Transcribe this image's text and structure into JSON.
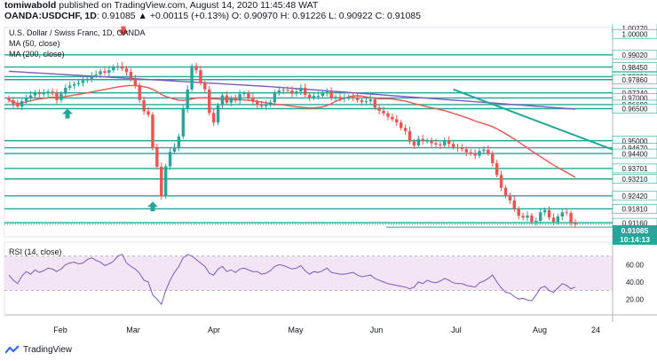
{
  "header": {
    "author": "tomiwabold",
    "published_text": "published on TradingView.com, August 14, 2020 11:45:48 WAT",
    "symbol": "OANDA:USDCHF, 1D",
    "quote": "0.91085 ▲ +0.00115 (+0.13%) O: 0.90970 H: 0.91226 L: 0.90922 C: 0.91085"
  },
  "footer": {
    "brand": "TradingView"
  },
  "chart_data": [
    {
      "type": "candlestick",
      "title": "U.S. Dollar / Swiss Franc, 1D, OANDA",
      "indicators": [
        "MA (50, close)",
        "MA (200, close)"
      ],
      "x_labels": [
        "Feb",
        "Mar",
        "Apr",
        "May",
        "Jun",
        "Jul",
        "Aug",
        "24"
      ],
      "y_labels": [
        "1.00270",
        "1.00000",
        "0.99020",
        "0.98450",
        "0.98000",
        "0.97860",
        "0.97240",
        "0.97000",
        "0.96690",
        "0.96500",
        "0.95000",
        "0.94670",
        "0.94400",
        "0.93701",
        "0.93210",
        "0.92420",
        "0.91810",
        "0.91160",
        "0.91085",
        "10:14:13"
      ],
      "last_price": 0.91085,
      "countdown": "10:14:13",
      "ylim": [
        0.905,
        1.003
      ],
      "horizontal_levels": [
        0.9902,
        0.9845,
        0.98,
        0.9786,
        0.9724,
        0.97,
        0.9669,
        0.965,
        0.95,
        0.9467,
        0.944,
        0.93701,
        0.9321,
        0.9242,
        0.9181,
        0.9116
      ],
      "close_series": [
        0.969,
        0.9672,
        0.966,
        0.9685,
        0.97,
        0.9712,
        0.9725,
        0.9718,
        0.9722,
        0.973,
        0.9721,
        0.969,
        0.972,
        0.9748,
        0.9758,
        0.9765,
        0.977,
        0.9782,
        0.979,
        0.9805,
        0.981,
        0.9825,
        0.9818,
        0.983,
        0.9845,
        0.9848,
        0.9838,
        0.9822,
        0.9788,
        0.976,
        0.969,
        0.9638,
        0.9622,
        0.947,
        0.9378,
        0.924,
        0.938,
        0.9448,
        0.9468,
        0.952,
        0.9648,
        0.974,
        0.985,
        0.983,
        0.977,
        0.974,
        0.963,
        0.9585,
        0.9665,
        0.9712,
        0.9678,
        0.97,
        0.9688,
        0.9718,
        0.9722,
        0.9702,
        0.9682,
        0.967,
        0.9662,
        0.967,
        0.968,
        0.9722,
        0.9735,
        0.9738,
        0.9735,
        0.972,
        0.973,
        0.9748,
        0.9715,
        0.9702,
        0.971,
        0.971,
        0.9724,
        0.973,
        0.97,
        0.9705,
        0.9696,
        0.97,
        0.9705,
        0.9702,
        0.969,
        0.9682,
        0.9685,
        0.9693,
        0.9655,
        0.964,
        0.9628,
        0.9612,
        0.96,
        0.9585,
        0.956,
        0.9545,
        0.9496,
        0.9478,
        0.9508,
        0.9498,
        0.95,
        0.9488,
        0.9482,
        0.9478,
        0.95,
        0.9485,
        0.947,
        0.9465,
        0.946,
        0.9446,
        0.944,
        0.943,
        0.9452,
        0.9458,
        0.944,
        0.9395,
        0.934,
        0.928,
        0.9242,
        0.922,
        0.918,
        0.9148,
        0.914,
        0.915,
        0.912,
        0.9125,
        0.9165,
        0.9175,
        0.914,
        0.912,
        0.9145,
        0.9165,
        0.9162,
        0.9118,
        0.9108
      ],
      "rsi": {
        "label": "RSI (14, close)",
        "y_labels": [
          "60.00",
          "40.00",
          "20.00"
        ],
        "ylim": [
          10,
          80
        ],
        "band": [
          30,
          70
        ],
        "values": [
          48,
          42,
          38,
          47,
          52,
          49,
          54,
          51,
          53,
          56,
          55,
          52,
          55,
          60,
          62,
          63,
          61,
          62,
          66,
          68,
          65,
          63,
          59,
          61,
          64,
          70,
          72,
          62,
          58,
          55,
          50,
          42,
          40,
          25,
          20,
          14,
          30,
          42,
          51,
          58,
          68,
          72,
          70,
          66,
          62,
          58,
          50,
          48,
          55,
          58,
          52,
          54,
          51,
          55,
          56,
          54,
          52,
          52,
          49,
          50,
          53,
          58,
          60,
          59,
          57,
          55,
          56,
          59,
          53,
          49,
          52,
          51,
          53,
          56,
          51,
          50,
          49,
          49,
          50,
          51,
          48,
          46,
          47,
          48,
          44,
          42,
          40,
          38,
          37,
          36,
          35,
          34,
          32,
          34,
          40,
          38,
          42,
          40,
          39,
          41,
          44,
          42,
          39,
          38,
          38,
          36,
          35,
          34,
          39,
          41,
          44,
          48,
          40,
          33,
          28,
          27,
          23,
          20,
          21,
          19,
          18,
          25,
          33,
          35,
          30,
          28,
          33,
          38,
          36,
          32,
          34
        ]
      }
    }
  ]
}
